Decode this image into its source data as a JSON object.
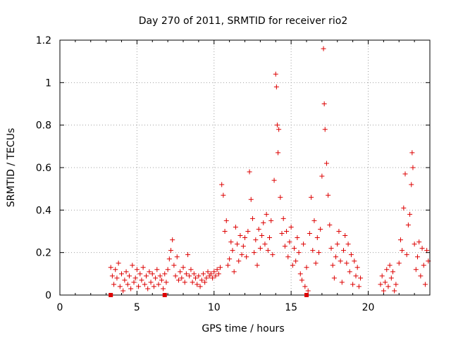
{
  "chart_data": {
    "type": "scatter",
    "title": "Day 270 of 2011, SRMTID for receiver rio2",
    "xlabel": "GPS time / hours",
    "ylabel": "SRMTID / TECUs",
    "xlim": [
      0,
      24
    ],
    "ylim": [
      0,
      1.2
    ],
    "x_ticks": [
      0,
      5,
      10,
      15,
      20
    ],
    "x_tick_labels": [
      "0",
      "5",
      "10",
      "15",
      "20"
    ],
    "y_ticks": [
      0,
      0.2,
      0.4,
      0.6,
      0.8,
      1.0,
      1.2
    ],
    "y_tick_labels": [
      "0",
      "0.2",
      "0.4",
      "0.6",
      "0.8",
      "1",
      "1.2"
    ],
    "grid": true,
    "marker": "+",
    "marker_color": "#dd0000",
    "series": [
      {
        "name": "SRMTID",
        "points": [
          [
            3.3,
            0.13
          ],
          [
            3.4,
            0.09
          ],
          [
            3.5,
            0.05
          ],
          [
            3.6,
            0.12
          ],
          [
            3.7,
            0.08
          ],
          [
            3.8,
            0.15
          ],
          [
            3.9,
            0.04
          ],
          [
            4.0,
            0.1
          ],
          [
            4.1,
            0.02
          ],
          [
            4.2,
            0.07
          ],
          [
            4.3,
            0.11
          ],
          [
            4.4,
            0.05
          ],
          [
            4.5,
            0.09
          ],
          [
            4.6,
            0.03
          ],
          [
            4.7,
            0.14
          ],
          [
            4.8,
            0.06
          ],
          [
            4.9,
            0.08
          ],
          [
            5.0,
            0.12
          ],
          [
            5.1,
            0.04
          ],
          [
            5.2,
            0.1
          ],
          [
            5.3,
            0.07
          ],
          [
            5.4,
            0.13
          ],
          [
            5.5,
            0.05
          ],
          [
            5.6,
            0.09
          ],
          [
            5.7,
            0.03
          ],
          [
            5.8,
            0.11
          ],
          [
            5.9,
            0.06
          ],
          [
            6.0,
            0.1
          ],
          [
            6.1,
            0.04
          ],
          [
            6.2,
            0.08
          ],
          [
            6.3,
            0.12
          ],
          [
            6.4,
            0.05
          ],
          [
            6.5,
            0.09
          ],
          [
            6.6,
            0.07
          ],
          [
            6.7,
            0.03
          ],
          [
            6.8,
            0.1
          ],
          [
            6.9,
            0.06
          ],
          [
            7.0,
            0.12
          ],
          [
            7.1,
            0.17
          ],
          [
            7.2,
            0.21
          ],
          [
            7.3,
            0.26
          ],
          [
            7.4,
            0.14
          ],
          [
            7.5,
            0.09
          ],
          [
            7.6,
            0.18
          ],
          [
            7.7,
            0.07
          ],
          [
            7.8,
            0.11
          ],
          [
            7.9,
            0.08
          ],
          [
            8.0,
            0.13
          ],
          [
            8.1,
            0.06
          ],
          [
            8.2,
            0.1
          ],
          [
            8.3,
            0.19
          ],
          [
            8.4,
            0.09
          ],
          [
            8.5,
            0.12
          ],
          [
            8.6,
            0.06
          ],
          [
            8.7,
            0.1
          ],
          [
            8.8,
            0.08
          ],
          [
            8.9,
            0.05
          ],
          [
            9.0,
            0.09
          ],
          [
            9.1,
            0.04
          ],
          [
            9.2,
            0.07
          ],
          [
            9.3,
            0.1
          ],
          [
            9.4,
            0.06
          ],
          [
            9.5,
            0.08
          ],
          [
            9.6,
            0.11
          ],
          [
            9.7,
            0.09
          ],
          [
            9.8,
            0.1
          ],
          [
            9.9,
            0.08
          ],
          [
            10.0,
            0.11
          ],
          [
            10.1,
            0.09
          ],
          [
            10.2,
            0.12
          ],
          [
            10.3,
            0.1
          ],
          [
            10.4,
            0.13
          ],
          [
            10.5,
            0.52
          ],
          [
            10.6,
            0.47
          ],
          [
            10.7,
            0.3
          ],
          [
            10.8,
            0.35
          ],
          [
            10.9,
            0.14
          ],
          [
            11.0,
            0.17
          ],
          [
            11.1,
            0.25
          ],
          [
            11.2,
            0.21
          ],
          [
            11.3,
            0.11
          ],
          [
            11.4,
            0.32
          ],
          [
            11.5,
            0.24
          ],
          [
            11.6,
            0.16
          ],
          [
            11.7,
            0.28
          ],
          [
            11.8,
            0.19
          ],
          [
            11.9,
            0.23
          ],
          [
            12.0,
            0.27
          ],
          [
            12.1,
            0.18
          ],
          [
            12.2,
            0.3
          ],
          [
            12.3,
            0.58
          ],
          [
            12.4,
            0.45
          ],
          [
            12.5,
            0.36
          ],
          [
            12.6,
            0.2
          ],
          [
            12.7,
            0.26
          ],
          [
            12.8,
            0.14
          ],
          [
            12.9,
            0.31
          ],
          [
            13.0,
            0.22
          ],
          [
            13.1,
            0.28
          ],
          [
            13.2,
            0.34
          ],
          [
            13.3,
            0.24
          ],
          [
            13.4,
            0.38
          ],
          [
            13.5,
            0.21
          ],
          [
            13.6,
            0.27
          ],
          [
            13.7,
            0.35
          ],
          [
            13.8,
            0.19
          ],
          [
            13.9,
            0.54
          ],
          [
            14.0,
            1.04
          ],
          [
            14.05,
            0.98
          ],
          [
            14.1,
            0.8
          ],
          [
            14.15,
            0.67
          ],
          [
            14.2,
            0.78
          ],
          [
            14.3,
            0.46
          ],
          [
            14.4,
            0.29
          ],
          [
            14.5,
            0.36
          ],
          [
            14.6,
            0.23
          ],
          [
            14.7,
            0.3
          ],
          [
            14.8,
            0.18
          ],
          [
            14.9,
            0.25
          ],
          [
            15.0,
            0.32
          ],
          [
            15.1,
            0.14
          ],
          [
            15.2,
            0.22
          ],
          [
            15.3,
            0.16
          ],
          [
            15.4,
            0.27
          ],
          [
            15.5,
            0.2
          ],
          [
            15.6,
            0.1
          ],
          [
            15.7,
            0.07
          ],
          [
            15.8,
            0.24
          ],
          [
            15.9,
            0.04
          ],
          [
            16.0,
            0.13
          ],
          [
            16.1,
            0.02
          ],
          [
            16.2,
            0.29
          ],
          [
            16.3,
            0.46
          ],
          [
            16.4,
            0.21
          ],
          [
            16.5,
            0.35
          ],
          [
            16.6,
            0.15
          ],
          [
            16.7,
            0.27
          ],
          [
            16.8,
            0.2
          ],
          [
            16.9,
            0.31
          ],
          [
            17.0,
            0.56
          ],
          [
            17.1,
            1.16
          ],
          [
            17.15,
            0.9
          ],
          [
            17.2,
            0.78
          ],
          [
            17.3,
            0.62
          ],
          [
            17.4,
            0.47
          ],
          [
            17.5,
            0.33
          ],
          [
            17.6,
            0.22
          ],
          [
            17.7,
            0.14
          ],
          [
            17.8,
            0.08
          ],
          [
            17.9,
            0.18
          ],
          [
            18.0,
            0.24
          ],
          [
            18.1,
            0.3
          ],
          [
            18.2,
            0.16
          ],
          [
            18.3,
            0.06
          ],
          [
            18.4,
            0.21
          ],
          [
            18.5,
            0.28
          ],
          [
            18.6,
            0.15
          ],
          [
            18.7,
            0.24
          ],
          [
            18.8,
            0.11
          ],
          [
            18.9,
            0.19
          ],
          [
            19.0,
            0.05
          ],
          [
            19.1,
            0.16
          ],
          [
            19.2,
            0.09
          ],
          [
            19.3,
            0.13
          ],
          [
            19.4,
            0.04
          ],
          [
            19.5,
            0.08
          ],
          [
            20.8,
            0.05
          ],
          [
            20.9,
            0.09
          ],
          [
            21.0,
            0.02
          ],
          [
            21.1,
            0.06
          ],
          [
            21.2,
            0.12
          ],
          [
            21.3,
            0.04
          ],
          [
            21.4,
            0.14
          ],
          [
            21.5,
            0.08
          ],
          [
            21.6,
            0.11
          ],
          [
            21.7,
            0.02
          ],
          [
            21.8,
            0.05
          ],
          [
            22.0,
            0.15
          ],
          [
            22.1,
            0.26
          ],
          [
            22.2,
            0.21
          ],
          [
            22.3,
            0.41
          ],
          [
            22.4,
            0.57
          ],
          [
            22.5,
            0.19
          ],
          [
            22.6,
            0.33
          ],
          [
            22.7,
            0.38
          ],
          [
            22.8,
            0.52
          ],
          [
            22.85,
            0.67
          ],
          [
            22.9,
            0.6
          ],
          [
            23.0,
            0.24
          ],
          [
            23.1,
            0.12
          ],
          [
            23.2,
            0.18
          ],
          [
            23.3,
            0.25
          ],
          [
            23.4,
            0.09
          ],
          [
            23.5,
            0.22
          ],
          [
            23.6,
            0.14
          ],
          [
            23.7,
            0.05
          ],
          [
            23.8,
            0.21
          ],
          [
            23.9,
            0.16
          ]
        ]
      }
    ]
  },
  "colors": {
    "marker": "#dd0000",
    "grid": "#a0a0a0",
    "axis": "#000000",
    "background": "#ffffff"
  }
}
